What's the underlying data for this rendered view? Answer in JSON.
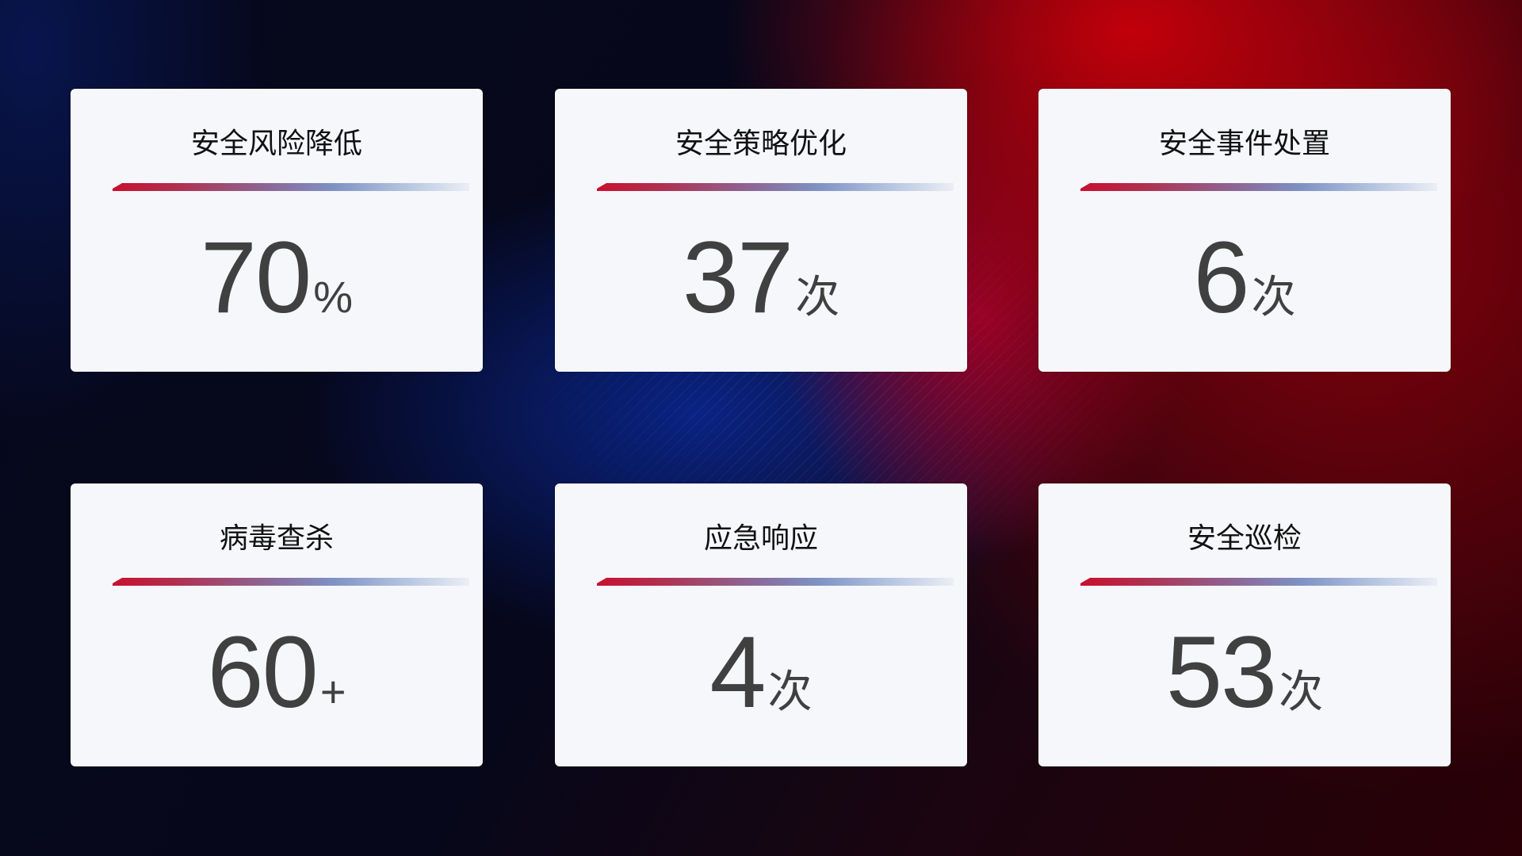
{
  "cards": [
    {
      "title": "安全风险降低",
      "value": "70",
      "unit": "%"
    },
    {
      "title": "安全策略优化",
      "value": "37",
      "unit": "次"
    },
    {
      "title": "安全事件处置",
      "value": "6",
      "unit": "次"
    },
    {
      "title": "病毒查杀",
      "value": "60",
      "unit": "+"
    },
    {
      "title": "应急响应",
      "value": "4",
      "unit": "次"
    },
    {
      "title": "安全巡检",
      "value": "53",
      "unit": "次"
    }
  ],
  "colors": {
    "accent_red": "#c8102e",
    "accent_blue": "#7e92c4",
    "card_bg": "#f6f7fb",
    "value_text": "#404040"
  }
}
